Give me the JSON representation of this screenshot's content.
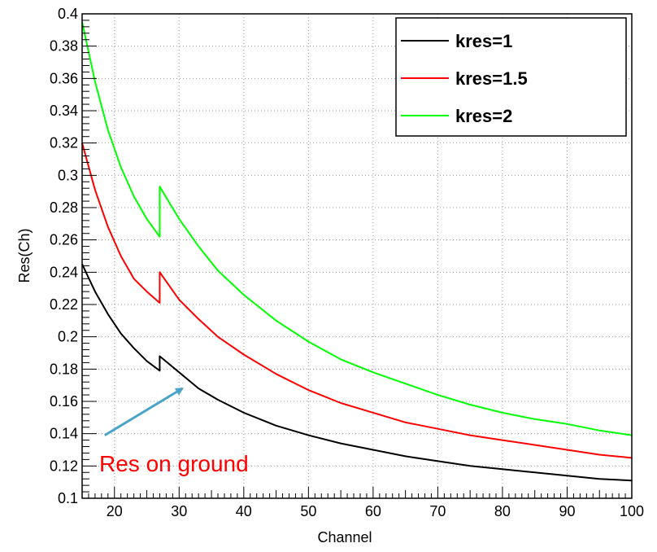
{
  "chart_data": {
    "type": "line",
    "title": "",
    "xlabel": "Channel",
    "ylabel": "Res(Ch)",
    "xlim": [
      15,
      100
    ],
    "ylim": [
      0.1,
      0.4
    ],
    "x_ticks": [
      20,
      30,
      40,
      50,
      60,
      70,
      80,
      90,
      100
    ],
    "y_ticks": [
      0.1,
      0.12,
      0.14,
      0.16,
      0.18,
      0.2,
      0.22,
      0.24,
      0.26,
      0.28,
      0.3,
      0.32,
      0.34,
      0.36,
      0.38,
      0.4
    ],
    "x_tick_labels": [
      "20",
      "30",
      "40",
      "50",
      "60",
      "70",
      "80",
      "90",
      "100"
    ],
    "y_tick_labels": [
      "0.1",
      "0.12",
      "0.14",
      "0.16",
      "0.18",
      "0.2",
      "0.22",
      "0.24",
      "0.26",
      "0.28",
      "0.3",
      "0.32",
      "0.34",
      "0.36",
      "0.38",
      "0.4"
    ],
    "grid": true,
    "legend_position": "top-right",
    "series": [
      {
        "name": "kres=1",
        "color": "#000000",
        "x": [
          15,
          17,
          19,
          21,
          23,
          25,
          27,
          27,
          30,
          33,
          36,
          40,
          45,
          50,
          55,
          60,
          65,
          70,
          75,
          80,
          85,
          90,
          95,
          100
        ],
        "y": [
          0.245,
          0.228,
          0.214,
          0.202,
          0.193,
          0.185,
          0.179,
          0.188,
          0.178,
          0.168,
          0.161,
          0.153,
          0.145,
          0.139,
          0.134,
          0.13,
          0.126,
          0.123,
          0.12,
          0.118,
          0.116,
          0.114,
          0.112,
          0.111
        ]
      },
      {
        "name": "kres=1.5",
        "color": "#ff0000",
        "x": [
          15,
          17,
          19,
          21,
          23,
          25,
          27,
          27,
          30,
          33,
          36,
          40,
          45,
          50,
          55,
          60,
          65,
          70,
          75,
          80,
          85,
          90,
          95,
          100
        ],
        "y": [
          0.32,
          0.291,
          0.268,
          0.25,
          0.236,
          0.228,
          0.221,
          0.24,
          0.223,
          0.211,
          0.2,
          0.189,
          0.177,
          0.167,
          0.159,
          0.153,
          0.147,
          0.143,
          0.139,
          0.136,
          0.133,
          0.13,
          0.127,
          0.125
        ]
      },
      {
        "name": "kres=2",
        "color": "#00ff00",
        "x": [
          15,
          17,
          19,
          21,
          23,
          25,
          27,
          27,
          30,
          33,
          36,
          40,
          45,
          50,
          55,
          60,
          65,
          70,
          75,
          80,
          85,
          90,
          95,
          100
        ],
        "y": [
          0.395,
          0.358,
          0.328,
          0.305,
          0.287,
          0.273,
          0.262,
          0.293,
          0.273,
          0.256,
          0.241,
          0.226,
          0.21,
          0.197,
          0.186,
          0.178,
          0.171,
          0.164,
          0.158,
          0.153,
          0.149,
          0.146,
          0.142,
          0.139
        ]
      }
    ],
    "annotations": [
      {
        "text": "Res on ground",
        "color": "#ff0000",
        "arrow_from": [
          18.5,
          0.139
        ],
        "arrow_to": [
          30.5,
          0.168
        ],
        "arrow_color": "#4aa3c8"
      }
    ]
  }
}
